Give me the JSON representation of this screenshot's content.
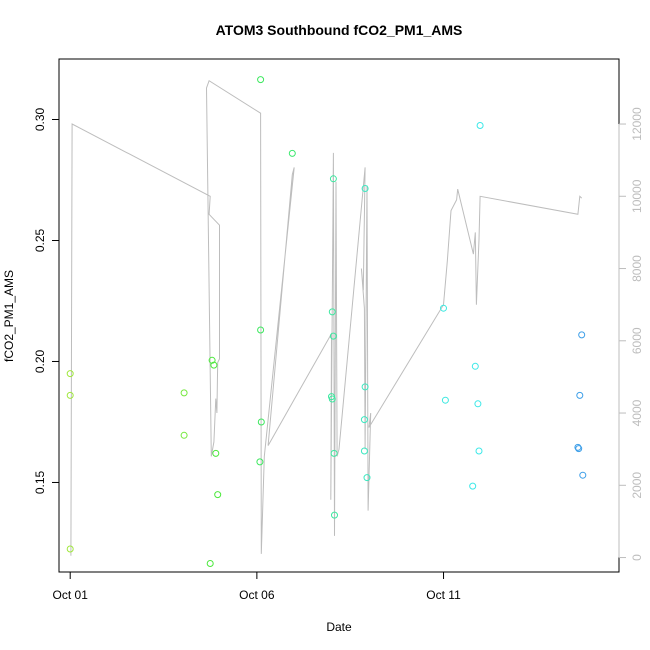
{
  "chart_data": {
    "type": "scatter",
    "title": "ATOM3 Southbound fCO2_PM1_AMS",
    "xlabel": "Date",
    "ylabel": "fCO2_PM1_AMS",
    "xlim": [
      -0.3,
      14.7
    ],
    "ylim": [
      0.113,
      0.325
    ],
    "y2lim": [
      -400,
      13800
    ],
    "x_ticks": [
      {
        "value": 0,
        "label": "Oct 01"
      },
      {
        "value": 5,
        "label": "Oct 06"
      },
      {
        "value": 10,
        "label": "Oct 11"
      }
    ],
    "y_ticks": [
      {
        "value": 0.15,
        "label": "0.15"
      },
      {
        "value": 0.2,
        "label": "0.20"
      },
      {
        "value": 0.25,
        "label": "0.25"
      },
      {
        "value": 0.3,
        "label": "0.30"
      }
    ],
    "y2_ticks": [
      {
        "value": 0,
        "label": "0"
      },
      {
        "value": 2000,
        "label": "2000"
      },
      {
        "value": 4000,
        "label": "4000"
      },
      {
        "value": 6000,
        "label": "6000"
      },
      {
        "value": 8000,
        "label": "8000"
      },
      {
        "value": 10000,
        "label": "10000"
      },
      {
        "value": 12000,
        "label": "12000"
      }
    ],
    "points": [
      {
        "x": 0.0,
        "y": 0.195,
        "color": "#a0e83c"
      },
      {
        "x": 0.0,
        "y": 0.186,
        "color": "#a0e83c"
      },
      {
        "x": 0.0,
        "y": 0.1225,
        "color": "#a0e83c"
      },
      {
        "x": 3.05,
        "y": 0.187,
        "color": "#74e83c"
      },
      {
        "x": 3.05,
        "y": 0.1695,
        "color": "#74e83c"
      },
      {
        "x": 3.8,
        "y": 0.2005,
        "color": "#4ce83c"
      },
      {
        "x": 3.85,
        "y": 0.1985,
        "color": "#4ce83c"
      },
      {
        "x": 3.9,
        "y": 0.162,
        "color": "#4ce83c"
      },
      {
        "x": 3.95,
        "y": 0.145,
        "color": "#4ce83c"
      },
      {
        "x": 3.75,
        "y": 0.1165,
        "color": "#4ce83c"
      },
      {
        "x": 5.1,
        "y": 0.3165,
        "color": "#3ce85e"
      },
      {
        "x": 5.1,
        "y": 0.213,
        "color": "#3ce85e"
      },
      {
        "x": 5.12,
        "y": 0.175,
        "color": "#3ce85e"
      },
      {
        "x": 5.08,
        "y": 0.1585,
        "color": "#3ce85e"
      },
      {
        "x": 5.95,
        "y": 0.286,
        "color": "#3ce86e"
      },
      {
        "x": 7.05,
        "y": 0.2755,
        "color": "#3ce8a0"
      },
      {
        "x": 7.02,
        "y": 0.2205,
        "color": "#3ce8a0"
      },
      {
        "x": 7.05,
        "y": 0.2105,
        "color": "#3ce8a0"
      },
      {
        "x": 7.0,
        "y": 0.1855,
        "color": "#3ce8a0"
      },
      {
        "x": 7.02,
        "y": 0.1845,
        "color": "#3ce8a0"
      },
      {
        "x": 7.07,
        "y": 0.162,
        "color": "#3ce8a0"
      },
      {
        "x": 7.08,
        "y": 0.1365,
        "color": "#3ce8a0"
      },
      {
        "x": 7.9,
        "y": 0.2715,
        "color": "#3ce8c0"
      },
      {
        "x": 7.9,
        "y": 0.1895,
        "color": "#3ce8c0"
      },
      {
        "x": 7.88,
        "y": 0.176,
        "color": "#3ce8c0"
      },
      {
        "x": 7.88,
        "y": 0.163,
        "color": "#3ce8c0"
      },
      {
        "x": 7.95,
        "y": 0.152,
        "color": "#3ce8c0"
      },
      {
        "x": 10.0,
        "y": 0.222,
        "color": "#3ce8e0"
      },
      {
        "x": 10.05,
        "y": 0.184,
        "color": "#3ce8e0"
      },
      {
        "x": 10.85,
        "y": 0.198,
        "color": "#3ce8e8"
      },
      {
        "x": 10.92,
        "y": 0.1825,
        "color": "#3ce8e8"
      },
      {
        "x": 10.95,
        "y": 0.163,
        "color": "#3ce8e8"
      },
      {
        "x": 10.78,
        "y": 0.1485,
        "color": "#3ce8e8"
      },
      {
        "x": 10.98,
        "y": 0.2975,
        "color": "#3ce8e8"
      },
      {
        "x": 13.7,
        "y": 0.211,
        "color": "#3c9ee8"
      },
      {
        "x": 13.65,
        "y": 0.186,
        "color": "#3c9ee8"
      },
      {
        "x": 13.6,
        "y": 0.1645,
        "color": "#3c9ee8"
      },
      {
        "x": 13.62,
        "y": 0.164,
        "color": "#3c9ee8"
      },
      {
        "x": 13.73,
        "y": 0.153,
        "color": "#3c9ee8"
      }
    ],
    "line_series": {
      "axis": "right",
      "color": "#bdbdbd",
      "points": [
        [
          0.02,
          50
        ],
        [
          0.05,
          12000
        ],
        [
          3.75,
          10000
        ],
        [
          3.72,
          9500
        ],
        [
          4.0,
          9200
        ],
        [
          4.0,
          5500
        ],
        [
          3.95,
          5400
        ],
        [
          3.93,
          4000
        ],
        [
          3.9,
          4400
        ],
        [
          3.85,
          3200
        ],
        [
          3.78,
          2800
        ],
        [
          3.65,
          13000
        ],
        [
          3.72,
          13200
        ],
        [
          5.1,
          12300
        ],
        [
          5.12,
          100
        ],
        [
          5.2,
          2800
        ],
        [
          6.0,
          10800
        ],
        [
          5.95,
          10600
        ],
        [
          5.3,
          3100
        ],
        [
          7.0,
          6200
        ],
        [
          6.98,
          1600
        ],
        [
          7.05,
          11200
        ],
        [
          7.08,
          600
        ],
        [
          7.12,
          10400
        ],
        [
          7.15,
          2800
        ],
        [
          7.2,
          3000
        ],
        [
          7.9,
          10800
        ],
        [
          7.85,
          7400
        ],
        [
          7.8,
          8000
        ],
        [
          7.88,
          6900
        ],
        [
          7.9,
          3000
        ],
        [
          7.95,
          10300
        ],
        [
          7.98,
          1300
        ],
        [
          8.05,
          4000
        ],
        [
          8.0,
          3600
        ],
        [
          10.0,
          7000
        ],
        [
          10.1,
          8200
        ],
        [
          10.2,
          9600
        ],
        [
          10.3,
          9800
        ],
        [
          10.35,
          9900
        ],
        [
          10.38,
          10200
        ],
        [
          10.8,
          8400
        ],
        [
          10.85,
          9000
        ],
        [
          10.88,
          7000
        ],
        [
          10.95,
          8800
        ],
        [
          10.98,
          10000
        ],
        [
          13.6,
          9500
        ],
        [
          13.65,
          10000
        ],
        [
          13.7,
          9950
        ]
      ]
    },
    "grid": false,
    "legend": "none"
  }
}
